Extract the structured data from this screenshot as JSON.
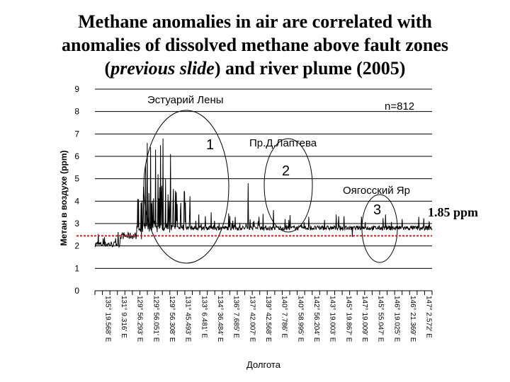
{
  "slide": {
    "title_lines": [
      "Methane anomalies in air are correlated  with",
      "anomalies of dissolved methane above fault zones"
    ],
    "title_line3": {
      "open": "(",
      "italic": "previous slide",
      "rest": ") and river plume (2005)"
    }
  },
  "chart_data": {
    "type": "line",
    "title": "",
    "ylabel": "Метан в воздухе (ppm)",
    "xlabel": "Долгота",
    "ylim": [
      0,
      9
    ],
    "yticks": [
      "0",
      "1",
      "2",
      "3",
      "4",
      "5",
      "6",
      "7",
      "8",
      "9"
    ],
    "grid": true,
    "x_tick_labels": [
      "135° 19.568' E",
      "131° 9.316' E",
      "129° 56.293' E",
      "129° 56.051' E",
      "129° 56.308' E",
      "131° 45.493' E",
      "133° 6.481' E",
      "134° 36.484' E",
      "136° 7.685' E",
      "137° 42.007' E",
      "139° 42.568' E",
      "140° 7.786' E",
      "140° 58.995' E",
      "142° 56.204' E",
      "143° 19.003' E",
      "145° 19.867' E",
      "147° 19.009' E",
      "145° 55.047' E",
      "146° 19.025' E",
      "146° 21.369' E",
      "147° 2.572' E"
    ],
    "n_label": "n=812",
    "reference_line": {
      "value": 1.85,
      "label": "1.85 ppm",
      "color": "#cc2222"
    },
    "annotations": [
      {
        "number": "1",
        "label": "Эстуарий Лены"
      },
      {
        "number": "2",
        "label": "Пр.Д.Лаптева"
      },
      {
        "number": "3",
        "label": "Оягосский Яр"
      }
    ],
    "series_envelope": {
      "note_free": true,
      "segments": [
        {
          "x": [
            0,
            60
          ],
          "baseline": [
            1.95,
            2.2
          ]
        },
        {
          "x": [
            60,
            100
          ],
          "baseline": [
            2.3,
            2.6
          ]
        },
        {
          "x": [
            100,
            180
          ],
          "baseline": [
            2.6,
            3.0
          ]
        },
        {
          "x": [
            180,
            812
          ],
          "baseline": [
            2.7,
            2.9
          ]
        }
      ],
      "peaks": [
        {
          "x": 103,
          "y": 4.1
        },
        {
          "x": 112,
          "y": 2.3
        },
        {
          "x": 122,
          "y": 5.6
        },
        {
          "x": 126,
          "y": 6.6
        },
        {
          "x": 134,
          "y": 6.4
        },
        {
          "x": 138,
          "y": 4.0
        },
        {
          "x": 146,
          "y": 6.3
        },
        {
          "x": 152,
          "y": 5.2
        },
        {
          "x": 158,
          "y": 6.5
        },
        {
          "x": 164,
          "y": 6.8
        },
        {
          "x": 170,
          "y": 5.0
        },
        {
          "x": 176,
          "y": 4.3
        },
        {
          "x": 182,
          "y": 6.1
        },
        {
          "x": 188,
          "y": 3.9
        },
        {
          "x": 196,
          "y": 4.4
        },
        {
          "x": 206,
          "y": 3.6
        },
        {
          "x": 216,
          "y": 4.4
        },
        {
          "x": 228,
          "y": 3.5
        },
        {
          "x": 250,
          "y": 3.4
        },
        {
          "x": 280,
          "y": 3.5
        },
        {
          "x": 338,
          "y": 3.3
        },
        {
          "x": 369,
          "y": 4.8
        },
        {
          "x": 395,
          "y": 3.3
        },
        {
          "x": 430,
          "y": 3.6
        },
        {
          "x": 458,
          "y": 3.2
        },
        {
          "x": 515,
          "y": 3.3
        },
        {
          "x": 620,
          "y": 2.4
        },
        {
          "x": 700,
          "y": 3.4
        },
        {
          "x": 740,
          "y": 3.2
        },
        {
          "x": 780,
          "y": 3.3
        },
        {
          "x": 805,
          "y": 3.1
        }
      ],
      "x_max": 812
    }
  }
}
